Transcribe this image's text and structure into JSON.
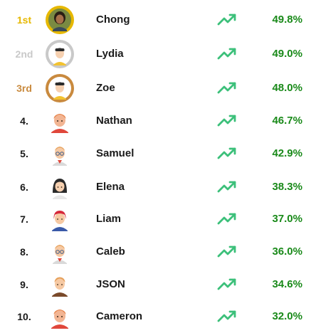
{
  "colors": {
    "gold": "#e6b800",
    "silver": "#c9c9c9",
    "bronze": "#c98a3e",
    "trend_green": "#3cc07a",
    "percent_green": "#1a8a1a"
  },
  "leaderboard": {
    "rows": [
      {
        "rank": "1st",
        "name": "Chong",
        "percent": "49.8%",
        "trend_icon": "trending-up-icon",
        "avatar": "photo-avatar",
        "medal": "gold"
      },
      {
        "rank": "2nd",
        "name": "Lydia",
        "percent": "49.0%",
        "trend_icon": "trending-up-icon",
        "avatar": "cartoon-avatar",
        "medal": "silver"
      },
      {
        "rank": "3rd",
        "name": "Zoe",
        "percent": "48.0%",
        "trend_icon": "trending-up-icon",
        "avatar": "cartoon-avatar",
        "medal": "bronze"
      },
      {
        "rank": "4.",
        "name": "Nathan",
        "percent": "46.7%",
        "trend_icon": "trending-up-icon",
        "avatar": "cartoon-avatar"
      },
      {
        "rank": "5.",
        "name": "Samuel",
        "percent": "42.9%",
        "trend_icon": "trending-up-icon",
        "avatar": "cartoon-avatar"
      },
      {
        "rank": "6.",
        "name": "Elena",
        "percent": "38.3%",
        "trend_icon": "trending-up-icon",
        "avatar": "cartoon-avatar"
      },
      {
        "rank": "7.",
        "name": "Liam",
        "percent": "37.0%",
        "trend_icon": "trending-up-icon",
        "avatar": "cartoon-avatar"
      },
      {
        "rank": "8.",
        "name": "Caleb",
        "percent": "36.0%",
        "trend_icon": "trending-up-icon",
        "avatar": "cartoon-avatar"
      },
      {
        "rank": "9.",
        "name": "JSON",
        "percent": "34.6%",
        "trend_icon": "trending-up-icon",
        "avatar": "cartoon-avatar"
      },
      {
        "rank": "10.",
        "name": "Cameron",
        "percent": "32.0%",
        "trend_icon": "trending-up-icon",
        "avatar": "cartoon-avatar"
      }
    ]
  }
}
